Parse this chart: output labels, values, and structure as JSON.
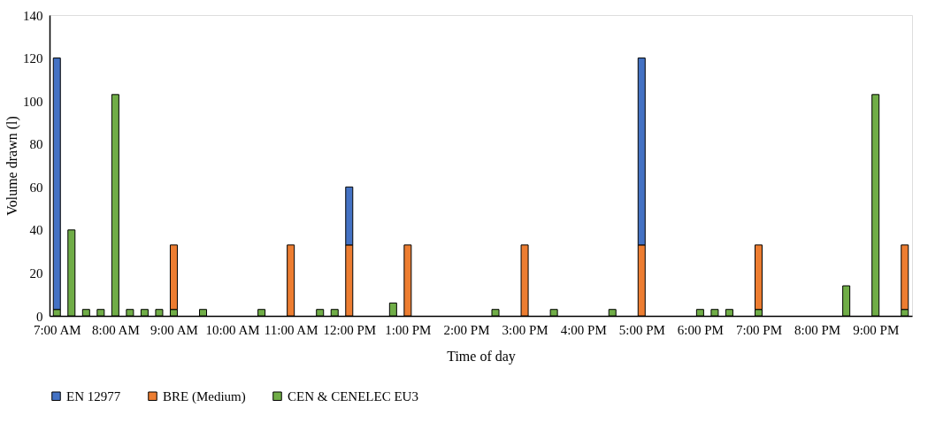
{
  "chart_data": {
    "type": "bar",
    "stacked": true,
    "xlabel": "Time of day",
    "ylabel": "Volume drawn (l)",
    "x": [
      7,
      7.25,
      7.5,
      7.75,
      8,
      8.25,
      8.5,
      8.75,
      9,
      9.5,
      10.5,
      11,
      11.5,
      11.75,
      12,
      12.75,
      13,
      14.5,
      15,
      15.5,
      16.5,
      17,
      18,
      18.25,
      18.5,
      19,
      20.5,
      21,
      21.5
    ],
    "series": [
      {
        "name": "CEN & CENELEC EU3",
        "color": "#70ad47",
        "values": [
          3,
          40,
          3,
          3,
          103,
          3,
          3,
          3,
          3,
          3,
          3,
          null,
          3,
          3,
          null,
          6,
          null,
          3,
          null,
          3,
          3,
          null,
          3,
          3,
          3,
          3,
          14,
          103,
          3
        ]
      },
      {
        "name": "BRE (Medium)",
        "color": "#ed7d31",
        "values": [
          null,
          null,
          null,
          null,
          null,
          null,
          null,
          null,
          30,
          null,
          null,
          33,
          null,
          null,
          33,
          null,
          33,
          null,
          33,
          null,
          null,
          33,
          null,
          null,
          null,
          30,
          null,
          null,
          30
        ]
      },
      {
        "name": "EN 12977",
        "color": "#4472c4",
        "values": [
          117,
          null,
          null,
          null,
          null,
          null,
          null,
          null,
          null,
          null,
          null,
          null,
          null,
          null,
          27,
          null,
          null,
          null,
          null,
          null,
          null,
          87,
          null,
          null,
          null,
          null,
          null,
          null,
          null
        ]
      }
    ],
    "xlim": [
      6.875,
      21.625
    ],
    "xticks": [
      {
        "value": 7,
        "label": "7:00 AM"
      },
      {
        "value": 8,
        "label": "8:00 AM"
      },
      {
        "value": 9,
        "label": "9:00 AM"
      },
      {
        "value": 10,
        "label": "10:00 AM"
      },
      {
        "value": 11,
        "label": "11:00 AM"
      },
      {
        "value": 12,
        "label": "12:00 PM"
      },
      {
        "value": 13,
        "label": "1:00 PM"
      },
      {
        "value": 14,
        "label": "2:00 PM"
      },
      {
        "value": 15,
        "label": "3:00 PM"
      },
      {
        "value": 16,
        "label": "4:00 PM"
      },
      {
        "value": 17,
        "label": "5:00 PM"
      },
      {
        "value": 18,
        "label": "6:00 PM"
      },
      {
        "value": 19,
        "label": "7:00 PM"
      },
      {
        "value": 20,
        "label": "8:00 PM"
      },
      {
        "value": 21,
        "label": "9:00 PM"
      }
    ],
    "ylim": [
      0,
      140
    ],
    "yticks": [
      0,
      20,
      40,
      60,
      80,
      100,
      120,
      140
    ],
    "grid": false,
    "legend": "bottom"
  }
}
